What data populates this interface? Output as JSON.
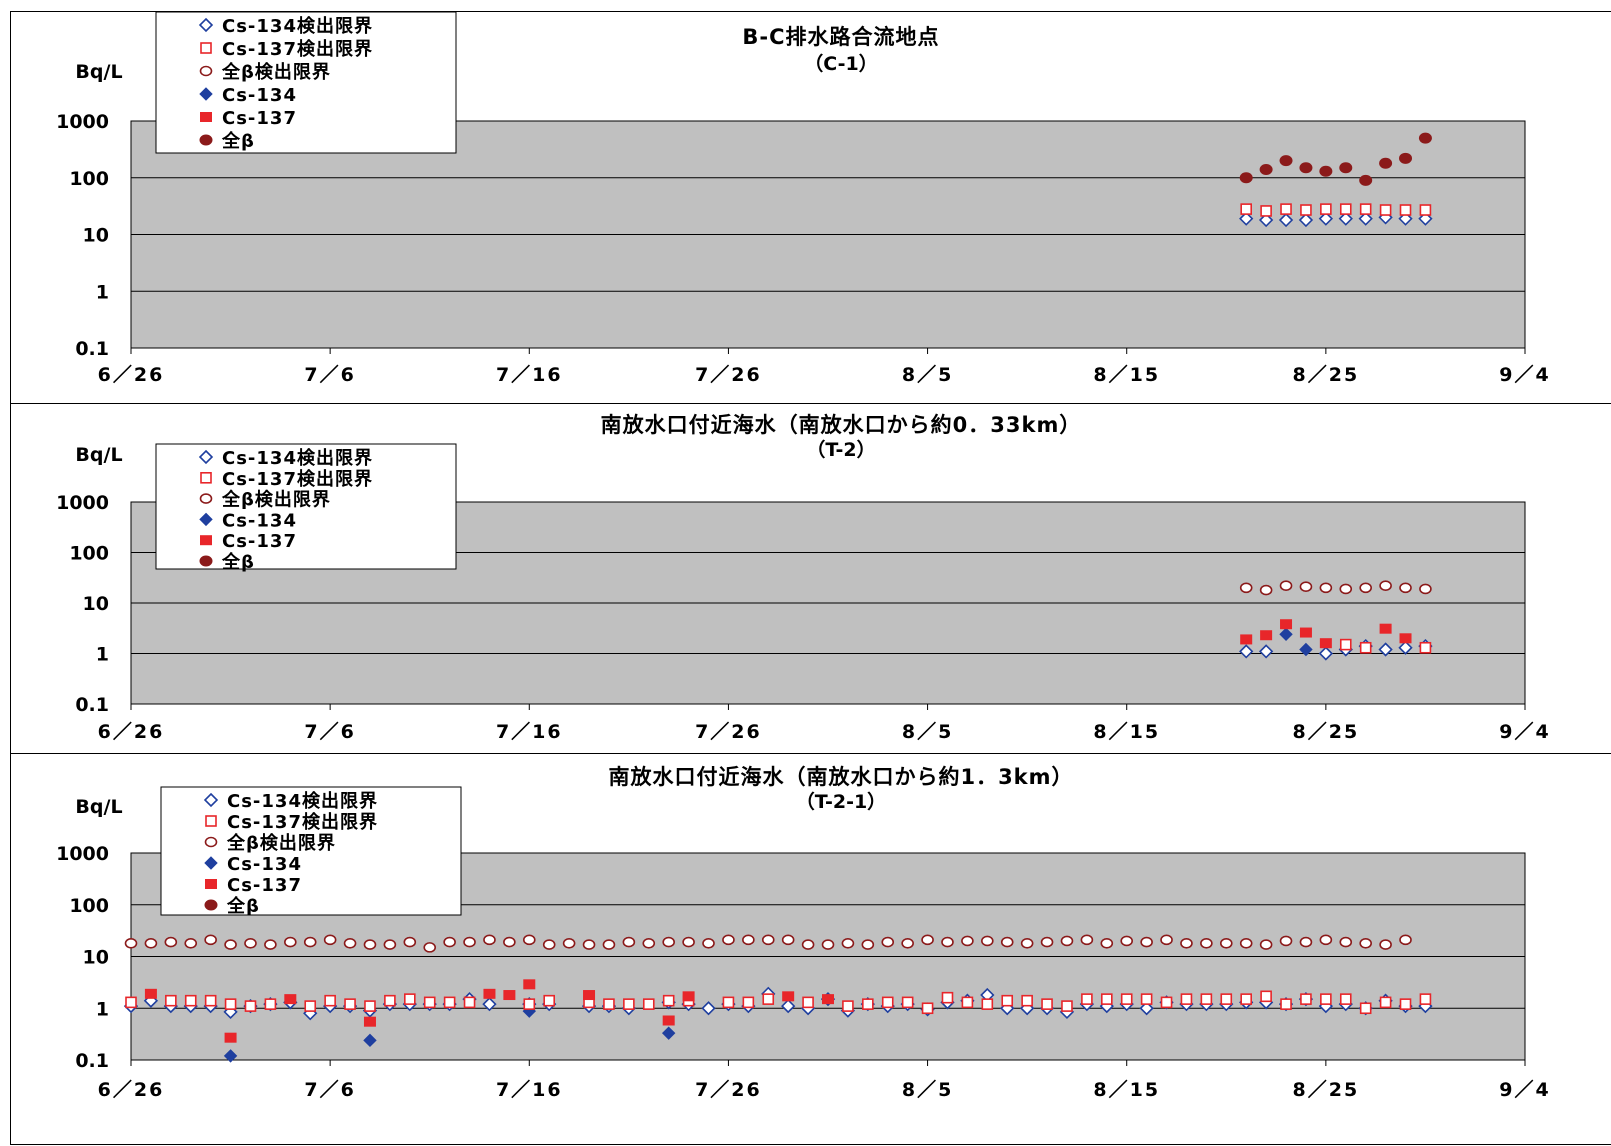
{
  "x_axis_ticks": [
    "6/26",
    "7/6",
    "7/16",
    "7/26",
    "8/5",
    "8/15",
    "8/25",
    "9/4"
  ],
  "y_axis_ticks": [
    "1000",
    "100",
    "10",
    "1",
    "0.1"
  ],
  "y_unit": "Bq/L",
  "legend": [
    "Cs-134検出限界",
    "Cs-137検出限界",
    "全β検出限界",
    "Cs-134",
    "Cs-137",
    "全β"
  ],
  "colors": {
    "cs134": "#1f3f9f",
    "cs137": "#e8262a",
    "beta": "#8b1a1a",
    "plot_bg": "#c0c0c0"
  },
  "chart_data": [
    {
      "type": "scatter",
      "title": "B-C排水路合流地点",
      "subtitle": "（C-1）",
      "ylabel": "Bq/L",
      "y_scale": "log",
      "ylim": [
        0.1,
        1000
      ],
      "x_range": [
        "6/26",
        "9/4"
      ],
      "x": [
        "8/21",
        "8/22",
        "8/23",
        "8/24",
        "8/25",
        "8/26",
        "8/27",
        "8/28",
        "8/29",
        "8/30"
      ],
      "series": [
        {
          "name": "Cs-134検出限界",
          "marker": "open-diamond",
          "values": [
            19,
            18,
            18,
            18,
            19,
            19,
            19,
            20,
            19,
            19
          ]
        },
        {
          "name": "Cs-137検出限界",
          "marker": "open-square",
          "values": [
            28,
            26,
            28,
            27,
            28,
            28,
            28,
            27,
            27,
            27
          ]
        },
        {
          "name": "全β",
          "marker": "filled-circle",
          "values": [
            100,
            140,
            200,
            150,
            130,
            150,
            90,
            180,
            220,
            500
          ]
        }
      ]
    },
    {
      "type": "scatter",
      "title": "南放水口付近海水（南放水口から約0．33km）",
      "subtitle": "（T-2）",
      "ylabel": "Bq/L",
      "y_scale": "log",
      "ylim": [
        0.1,
        1000
      ],
      "x_range": [
        "6/26",
        "9/4"
      ],
      "x": [
        "8/21",
        "8/22",
        "8/23",
        "8/24",
        "8/25",
        "8/26",
        "8/27",
        "8/28",
        "8/29",
        "8/30"
      ],
      "series": [
        {
          "name": "全β検出限界",
          "marker": "open-circle",
          "values": [
            20,
            18,
            22,
            21,
            20,
            19,
            20,
            22,
            20,
            19
          ]
        },
        {
          "name": "Cs-134検出限界",
          "marker": "open-diamond",
          "values": [
            1.1,
            1.1,
            null,
            null,
            1.0,
            1.2,
            1.4,
            1.2,
            1.3,
            1.4
          ]
        },
        {
          "name": "Cs-134",
          "marker": "filled-diamond",
          "values": [
            null,
            null,
            2.4,
            1.2,
            null,
            null,
            null,
            null,
            null,
            null
          ]
        },
        {
          "name": "Cs-137検出限界",
          "marker": "open-square",
          "values": [
            null,
            null,
            null,
            null,
            null,
            1.5,
            1.3,
            null,
            null,
            1.3
          ]
        },
        {
          "name": "Cs-137",
          "marker": "filled-square",
          "values": [
            1.9,
            2.3,
            3.8,
            2.6,
            1.6,
            null,
            null,
            3.1,
            2.0,
            null
          ]
        }
      ]
    },
    {
      "type": "scatter",
      "title": "南放水口付近海水（南放水口から約1．3km）",
      "subtitle": "（T-2-1）",
      "ylabel": "Bq/L",
      "y_scale": "log",
      "ylim": [
        0.1,
        1000
      ],
      "x_range": [
        "6/26",
        "9/4"
      ],
      "x": [
        "6/26",
        "6/27",
        "6/28",
        "6/29",
        "6/30",
        "7/1",
        "7/2",
        "7/3",
        "7/4",
        "7/5",
        "7/6",
        "7/7",
        "7/8",
        "7/9",
        "7/10",
        "7/11",
        "7/12",
        "7/13",
        "7/14",
        "7/15",
        "7/16",
        "7/17",
        "7/18",
        "7/19",
        "7/20",
        "7/21",
        "7/22",
        "7/23",
        "7/24",
        "7/25",
        "7/26",
        "7/27",
        "7/28",
        "7/29",
        "7/30",
        "7/31",
        "8/1",
        "8/2",
        "8/3",
        "8/4",
        "8/5",
        "8/6",
        "8/7",
        "8/8",
        "8/9",
        "8/10",
        "8/11",
        "8/12",
        "8/13",
        "8/14",
        "8/15",
        "8/16",
        "8/17",
        "8/18",
        "8/19",
        "8/20",
        "8/21",
        "8/22",
        "8/23",
        "8/24",
        "8/25",
        "8/26",
        "8/27",
        "8/28",
        "8/29",
        "8/30"
      ],
      "series": [
        {
          "name": "全β検出限界",
          "marker": "open-circle",
          "values": [
            18,
            18,
            19,
            18,
            21,
            17,
            18,
            17,
            19,
            19,
            21,
            18,
            17,
            17,
            19,
            15,
            19,
            19,
            21,
            19,
            21,
            17,
            18,
            17,
            17,
            19,
            18,
            19,
            19,
            18,
            21,
            21,
            21,
            21,
            17,
            17,
            18,
            17,
            19,
            18,
            21,
            19,
            20,
            20,
            19,
            18,
            19,
            20,
            21,
            18,
            20,
            19,
            21,
            18,
            18,
            18,
            18,
            17,
            20,
            19,
            21,
            19,
            18,
            17,
            21,
            null
          ]
        },
        {
          "name": "Cs-134検出限界",
          "marker": "open-diamond",
          "values": [
            1.1,
            1.4,
            1.1,
            1.1,
            1.1,
            0.85,
            1.1,
            1.2,
            1.3,
            0.8,
            1.1,
            1.1,
            0.9,
            1.2,
            1.2,
            1.2,
            1.2,
            1.5,
            1.2,
            null,
            1.2,
            1.2,
            null,
            1.1,
            1.1,
            1.0,
            null,
            1.3,
            1.2,
            1.0,
            1.2,
            1.1,
            1.9,
            1.1,
            1.0,
            1.5,
            0.9,
            1.2,
            1.1,
            1.2,
            0.95,
            1.3,
            1.4,
            1.8,
            1.0,
            1.0,
            1.0,
            0.85,
            1.2,
            1.1,
            1.2,
            1.0,
            1.3,
            1.2,
            1.2,
            1.2,
            1.3,
            1.3,
            1.2,
            1.5,
            1.1,
            1.2,
            1.0,
            1.4,
            1.1,
            1.1
          ]
        },
        {
          "name": "Cs-134",
          "marker": "filled-diamond",
          "values": [
            null,
            null,
            null,
            null,
            null,
            0.12,
            null,
            null,
            null,
            null,
            null,
            null,
            0.24,
            null,
            null,
            null,
            null,
            null,
            null,
            null,
            0.88,
            null,
            null,
            null,
            null,
            null,
            null,
            0.33,
            null,
            null,
            null,
            null,
            null,
            null,
            null,
            null,
            null,
            null,
            null,
            null,
            null,
            null,
            null,
            null,
            null,
            null,
            null,
            null,
            null,
            null,
            null,
            null,
            null,
            null,
            null,
            null,
            null,
            null,
            null,
            null,
            null,
            null,
            null,
            null,
            null,
            null
          ]
        },
        {
          "name": "Cs-137検出限界",
          "marker": "open-square",
          "values": [
            1.3,
            null,
            1.4,
            1.4,
            1.4,
            1.2,
            1.1,
            1.2,
            null,
            1.1,
            1.4,
            1.2,
            1.1,
            1.4,
            1.5,
            1.3,
            1.3,
            1.3,
            null,
            null,
            1.2,
            1.4,
            null,
            1.3,
            1.2,
            1.2,
            1.2,
            1.4,
            1.4,
            null,
            1.3,
            1.3,
            1.5,
            null,
            1.3,
            null,
            1.1,
            1.2,
            1.3,
            1.3,
            1.0,
            1.6,
            1.3,
            1.2,
            1.4,
            1.4,
            1.2,
            1.1,
            1.5,
            1.5,
            1.5,
            1.5,
            1.3,
            1.5,
            1.5,
            1.5,
            1.5,
            1.7,
            1.2,
            1.5,
            1.5,
            1.5,
            1.0,
            1.3,
            1.2,
            1.5
          ]
        },
        {
          "name": "Cs-137",
          "marker": "filled-square",
          "values": [
            null,
            1.9,
            null,
            null,
            null,
            0.27,
            null,
            null,
            1.5,
            null,
            null,
            null,
            0.55,
            null,
            null,
            null,
            null,
            null,
            1.9,
            1.8,
            2.9,
            null,
            null,
            1.8,
            null,
            null,
            null,
            0.58,
            1.7,
            null,
            null,
            null,
            null,
            1.7,
            null,
            1.5,
            null,
            null,
            null,
            null,
            null,
            null,
            null,
            null,
            null,
            null,
            null,
            null,
            null,
            null,
            null,
            null,
            null,
            null,
            null,
            null,
            null,
            null,
            null,
            null,
            null,
            null,
            null,
            null,
            null,
            null
          ]
        }
      ]
    }
  ]
}
